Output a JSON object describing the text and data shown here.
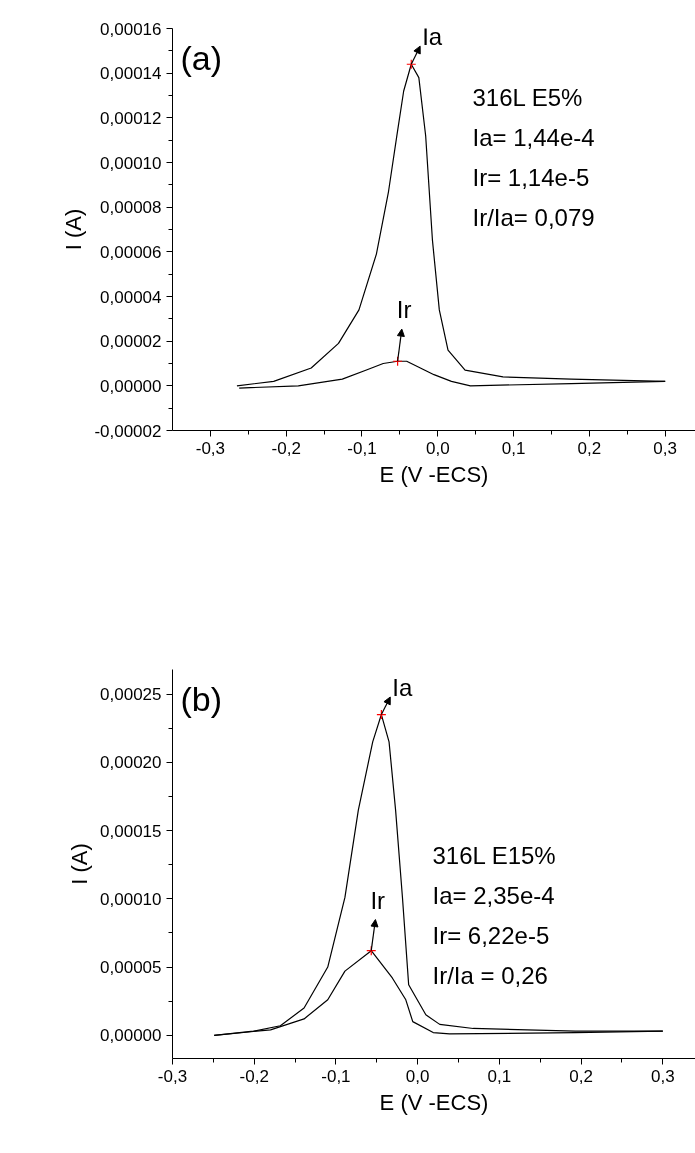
{
  "chart_data": [
    {
      "type": "line",
      "xlabel": "E (V -ECS)",
      "ylabel": "I (A)",
      "xlim": [
        -0.35,
        0.34
      ],
      "ylim": [
        -2e-05,
        0.00016
      ],
      "xticks": [
        {
          "value": -0.3,
          "label": "-0,3"
        },
        {
          "value": -0.2,
          "label": "-0,2"
        },
        {
          "value": -0.1,
          "label": "-0,1"
        },
        {
          "value": 0,
          "label": "0,0"
        },
        {
          "value": 0.1,
          "label": "0,1"
        },
        {
          "value": 0.2,
          "label": "0,2"
        },
        {
          "value": 0.3,
          "label": "0,3"
        }
      ],
      "yticks": [
        {
          "value": -2e-05,
          "label": "-0,00002"
        },
        {
          "value": 0,
          "label": "0,00000"
        },
        {
          "value": 2e-05,
          "label": "0,00002"
        },
        {
          "value": 4e-05,
          "label": "0,00004"
        },
        {
          "value": 6e-05,
          "label": "0,00006"
        },
        {
          "value": 8e-05,
          "label": "0,00008"
        },
        {
          "value": 0.0001,
          "label": "0,00010"
        },
        {
          "value": 0.00012,
          "label": "0,00012"
        },
        {
          "value": 0.00014,
          "label": "0,00014"
        },
        {
          "value": 0.00016,
          "label": "0,00016"
        }
      ],
      "grid": false,
      "line_style": "solid",
      "series": [
        {
          "color": "#000000",
          "x": [
            -0.265,
            -0.2165,
            -0.167,
            -0.131,
            -0.104,
            -0.081,
            -0.065,
            -0.054,
            -0.045,
            -0.035,
            -0.025,
            -0.016,
            -0.007,
            0.002,
            0.0135,
            0.036,
            0.086,
            0.176,
            0.3
          ],
          "values": [
            0.0,
            2e-06,
            8e-06,
            1.9e-05,
            3.4e-05,
            5.9e-05,
            8.7e-05,
            0.000112,
            0.000132,
            0.000144,
            0.000138,
            0.000112,
            6.5e-05,
            3.4e-05,
            1.6e-05,
            7e-06,
            4e-06,
            3e-06,
            2e-06
          ]
        },
        {
          "color": "#000000",
          "x": [
            -0.262,
            -0.184,
            -0.126,
            -0.095,
            -0.072,
            -0.053,
            -0.041,
            -0.023,
            -0.005,
            0.018,
            0.043,
            0.176,
            0.3
          ],
          "values": [
            -1e-06,
            0.0,
            3e-06,
            7e-06,
            1e-05,
            1.1e-05,
            1.1e-05,
            8e-06,
            5e-06,
            2e-06,
            0.0,
            1e-06,
            2e-06
          ]
        },
        {
          "type": "scatter",
          "marker": "cross",
          "color": "#ff0000",
          "x": [
            -0.035,
            -0.053
          ],
          "values": [
            0.000144,
            1.1e-05
          ]
        }
      ],
      "annotations": [
        "(a)",
        "316L E5%",
        "Ia= 1,44e-4",
        "Ir= 1,14e-5",
        "Ir/Ia= 0,079",
        {
          "text": "Ia",
          "x": -0.035,
          "y": 0.000144
        },
        {
          "text": "Ir",
          "x": -0.053,
          "y": 1.1e-05
        }
      ]
    },
    {
      "type": "line",
      "xlabel": "E (V -ECS)",
      "ylabel": "I (A)",
      "xlim": [
        -0.3,
        0.34
      ],
      "ylim": [
        -1.7e-05,
        0.000268
      ],
      "xticks": [
        {
          "value": -0.3,
          "label": "-0,3"
        },
        {
          "value": -0.2,
          "label": "-0,2"
        },
        {
          "value": -0.1,
          "label": "-0,1"
        },
        {
          "value": 0,
          "label": "0,0"
        },
        {
          "value": 0.1,
          "label": "0,1"
        },
        {
          "value": 0.2,
          "label": "0,2"
        },
        {
          "value": 0.3,
          "label": "0,3"
        }
      ],
      "yticks": [
        {
          "value": 0,
          "label": "0,00000"
        },
        {
          "value": 5e-05,
          "label": "0,00005"
        },
        {
          "value": 0.0001,
          "label": "0,00010"
        },
        {
          "value": 0.00015,
          "label": "0,00015"
        },
        {
          "value": 0.0002,
          "label": "0,00020"
        },
        {
          "value": 0.00025,
          "label": "0,00025"
        }
      ],
      "grid": false,
      "line_style": "solid",
      "series": [
        {
          "color": "#000000",
          "x": [
            -0.249,
            -0.201,
            -0.168,
            -0.139,
            -0.11,
            -0.089,
            -0.0726,
            -0.055,
            -0.0444,
            -0.035,
            -0.027,
            -0.0186,
            -0.011,
            0.01,
            0.027,
            0.068,
            0.193,
            0.3
          ],
          "values": [
            0.0,
            3e-06,
            7e-06,
            2e-05,
            5e-05,
            0.000101,
            0.000165,
            0.000215,
            0.000235,
            0.000215,
            0.000165,
            0.000101,
            3.7e-05,
            1.5e-05,
            8e-06,
            5e-06,
            3e-06,
            3e-06
          ]
        },
        {
          "color": "#000000",
          "x": [
            -0.249,
            -0.18,
            -0.139,
            -0.11,
            -0.089,
            -0.0568,
            -0.031,
            -0.0145,
            -0.006,
            0.019,
            0.039,
            0.193,
            0.3
          ],
          "values": [
            0.0,
            4e-06,
            1.2e-05,
            2.6e-05,
            4.7e-05,
            6.2e-05,
            4.2e-05,
            2.6e-05,
            1e-05,
            2e-06,
            1e-06,
            2e-06,
            3e-06
          ]
        },
        {
          "type": "scatter",
          "marker": "cross",
          "color": "#ff0000",
          "x": [
            -0.0444,
            -0.0568
          ],
          "values": [
            0.000235,
            6.2e-05
          ]
        }
      ],
      "annotations": [
        "(b)",
        "316L E15%",
        "Ia= 2,35e-4",
        "Ir= 6,22e-5",
        "Ir/Ia = 0,26",
        {
          "text": "Ia",
          "x": -0.0444,
          "y": 0.000235
        },
        {
          "text": "Ir",
          "x": -0.0568,
          "y": 6.2e-05
        }
      ]
    }
  ]
}
